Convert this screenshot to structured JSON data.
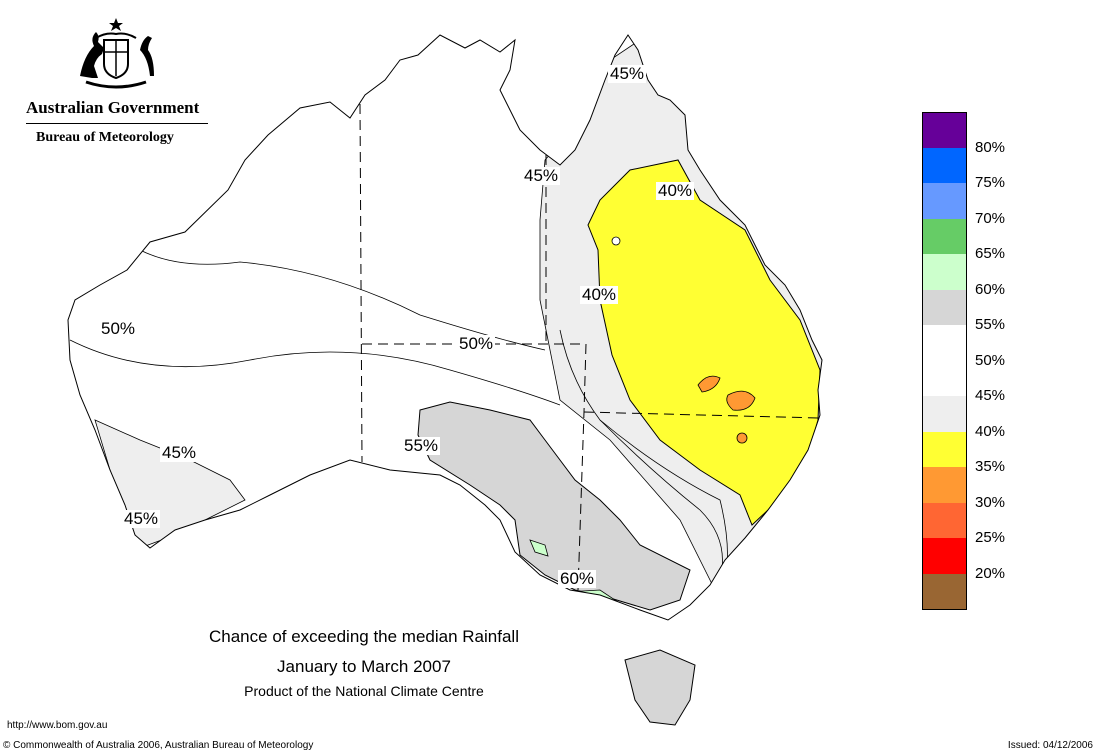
{
  "header": {
    "organisation": "Australian Government",
    "bureau": "Bureau of Meteorology",
    "emblem_icon": "commonwealth-coat-of-arms"
  },
  "map": {
    "subject": "Australia",
    "labels": {
      "n45": "45%",
      "ne45": "45%",
      "ne40": "40%",
      "c40": "40%",
      "w50": "50%",
      "c50": "50%",
      "c55": "55%",
      "sw45a": "45%",
      "sw45b": "45%",
      "se60": "60%"
    }
  },
  "legend": {
    "colors": [
      "#660099",
      "#0066ff",
      "#6699ff",
      "#66cc66",
      "#ccffcc",
      "#d6d6d6",
      "#ffffff",
      "#ffffff",
      "#eeeeee",
      "#ffff33",
      "#ff9933",
      "#ff6633",
      "#ff0000",
      "#996633"
    ],
    "labels": [
      "80%",
      "75%",
      "70%",
      "65%",
      "60%",
      "55%",
      "50%",
      "45%",
      "40%",
      "35%",
      "30%",
      "25%",
      "20%"
    ]
  },
  "title": {
    "line1": "Chance of exceeding the median Rainfall",
    "line2": "January to March 2007",
    "line3": "Product of the National Climate Centre"
  },
  "footer": {
    "url": "http://www.bom.gov.au",
    "copyright": "© Commonwealth of Australia 2006, Australian Bureau of Meteorology",
    "issued": "Issued: 04/12/2006"
  }
}
